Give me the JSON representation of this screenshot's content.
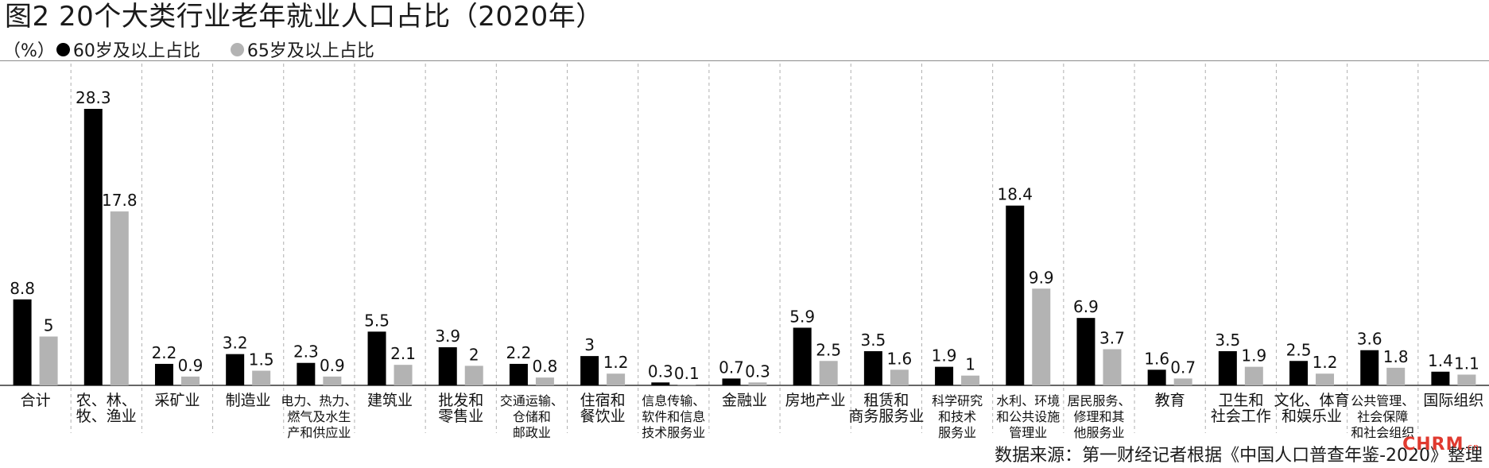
{
  "title": "图2  20个大类行业老年就业人口占比（2020年）",
  "legend": {
    "unit": "（%）",
    "items": [
      {
        "label": "60岁及以上占比",
        "color": "#000000"
      },
      {
        "label": "65岁及以上占比",
        "color": "#b3b3b3"
      }
    ]
  },
  "source": "数据来源：第一财经记者根据《中国人口普查年鉴-2020》整理",
  "watermark": {
    "brand": "CHRM",
    "suffix": ".cn"
  },
  "chart_data": {
    "type": "bar",
    "categories": [
      [
        "合计"
      ],
      [
        "农、林、",
        "牧、渔业"
      ],
      [
        "采矿业"
      ],
      [
        "制造业"
      ],
      [
        "电力、热力、",
        "燃气及水生",
        "产和供应业"
      ],
      [
        "建筑业"
      ],
      [
        "批发和",
        "零售业"
      ],
      [
        "交通运输、",
        "仓储和",
        "邮政业"
      ],
      [
        "住宿和",
        "餐饮业"
      ],
      [
        "信息传输、",
        "软件和信息",
        "技术服务业"
      ],
      [
        "金融业"
      ],
      [
        "房地产业"
      ],
      [
        "租赁和",
        "商务服务业"
      ],
      [
        "科学研究",
        "和技术",
        "服务业"
      ],
      [
        "水利、环境",
        "和公共设施",
        "管理业"
      ],
      [
        "居民服务、",
        "修理和其",
        "他服务业"
      ],
      [
        "教育"
      ],
      [
        "卫生和",
        "社会工作"
      ],
      [
        "文化、体育",
        "和娱乐业"
      ],
      [
        "公共管理、",
        "社会保障",
        "和社会组织"
      ],
      [
        "国际组织"
      ]
    ],
    "series": [
      {
        "name": "60岁及以上占比",
        "color": "#000000",
        "values": [
          8.8,
          28.3,
          2.2,
          3.2,
          2.3,
          5.5,
          3.9,
          2.2,
          3,
          0.3,
          0.7,
          5.9,
          3.5,
          1.9,
          18.4,
          6.9,
          1.6,
          3.5,
          2.5,
          3.6,
          1.4
        ]
      },
      {
        "name": "65岁及以上占比",
        "color": "#b3b3b3",
        "values": [
          5,
          17.8,
          0.9,
          1.5,
          0.9,
          2.1,
          2,
          0.8,
          1.2,
          0.1,
          0.3,
          2.5,
          1.6,
          1,
          9.9,
          3.7,
          0.7,
          1.9,
          1.2,
          1.8,
          1.1
        ]
      }
    ],
    "ylim": [
      0,
      30
    ],
    "grid": "vertical dashed separators between categories",
    "legend": "top-left"
  }
}
